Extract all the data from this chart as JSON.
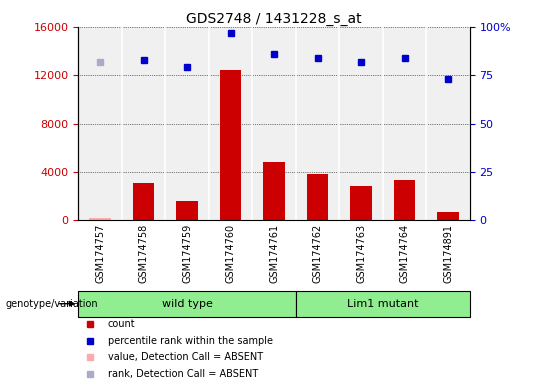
{
  "title": "GDS2748 / 1431228_s_at",
  "samples": [
    "GSM174757",
    "GSM174758",
    "GSM174759",
    "GSM174760",
    "GSM174761",
    "GSM174762",
    "GSM174763",
    "GSM174764",
    "GSM174891"
  ],
  "counts": [
    150,
    3100,
    1600,
    12400,
    4800,
    3800,
    2800,
    3300,
    700
  ],
  "percentile_ranks": [
    82,
    83,
    79,
    97,
    86,
    84,
    82,
    84,
    73
  ],
  "absent_value_idx": [
    0
  ],
  "absent_rank_idx": [
    0
  ],
  "count_color": "#cc0000",
  "rank_color": "#0000cc",
  "absent_value_color": "#ffaaaa",
  "absent_rank_color": "#aaaacc",
  "wild_type_count": 5,
  "lim1_mutant_count": 4,
  "group_color": "#90ee90",
  "group_labels": [
    "wild type",
    "Lim1 mutant"
  ],
  "ylim_left": [
    0,
    16000
  ],
  "yticks_left": [
    0,
    4000,
    8000,
    12000,
    16000
  ],
  "ylim_right": [
    0,
    100
  ],
  "yticks_right": [
    0,
    25,
    50,
    75,
    100
  ],
  "ytick_right_labels": [
    "0",
    "25",
    "50",
    "75",
    "100%"
  ],
  "ylabel_left_color": "#cc0000",
  "ylabel_right_color": "#0000cc",
  "plot_bg_color": "#f0f0f0",
  "xtick_bg_color": "#cccccc",
  "legend_items": [
    {
      "label": "count",
      "color": "#cc0000"
    },
    {
      "label": "percentile rank within the sample",
      "color": "#0000cc"
    },
    {
      "label": "value, Detection Call = ABSENT",
      "color": "#ffaaaa"
    },
    {
      "label": "rank, Detection Call = ABSENT",
      "color": "#aaaacc"
    }
  ]
}
